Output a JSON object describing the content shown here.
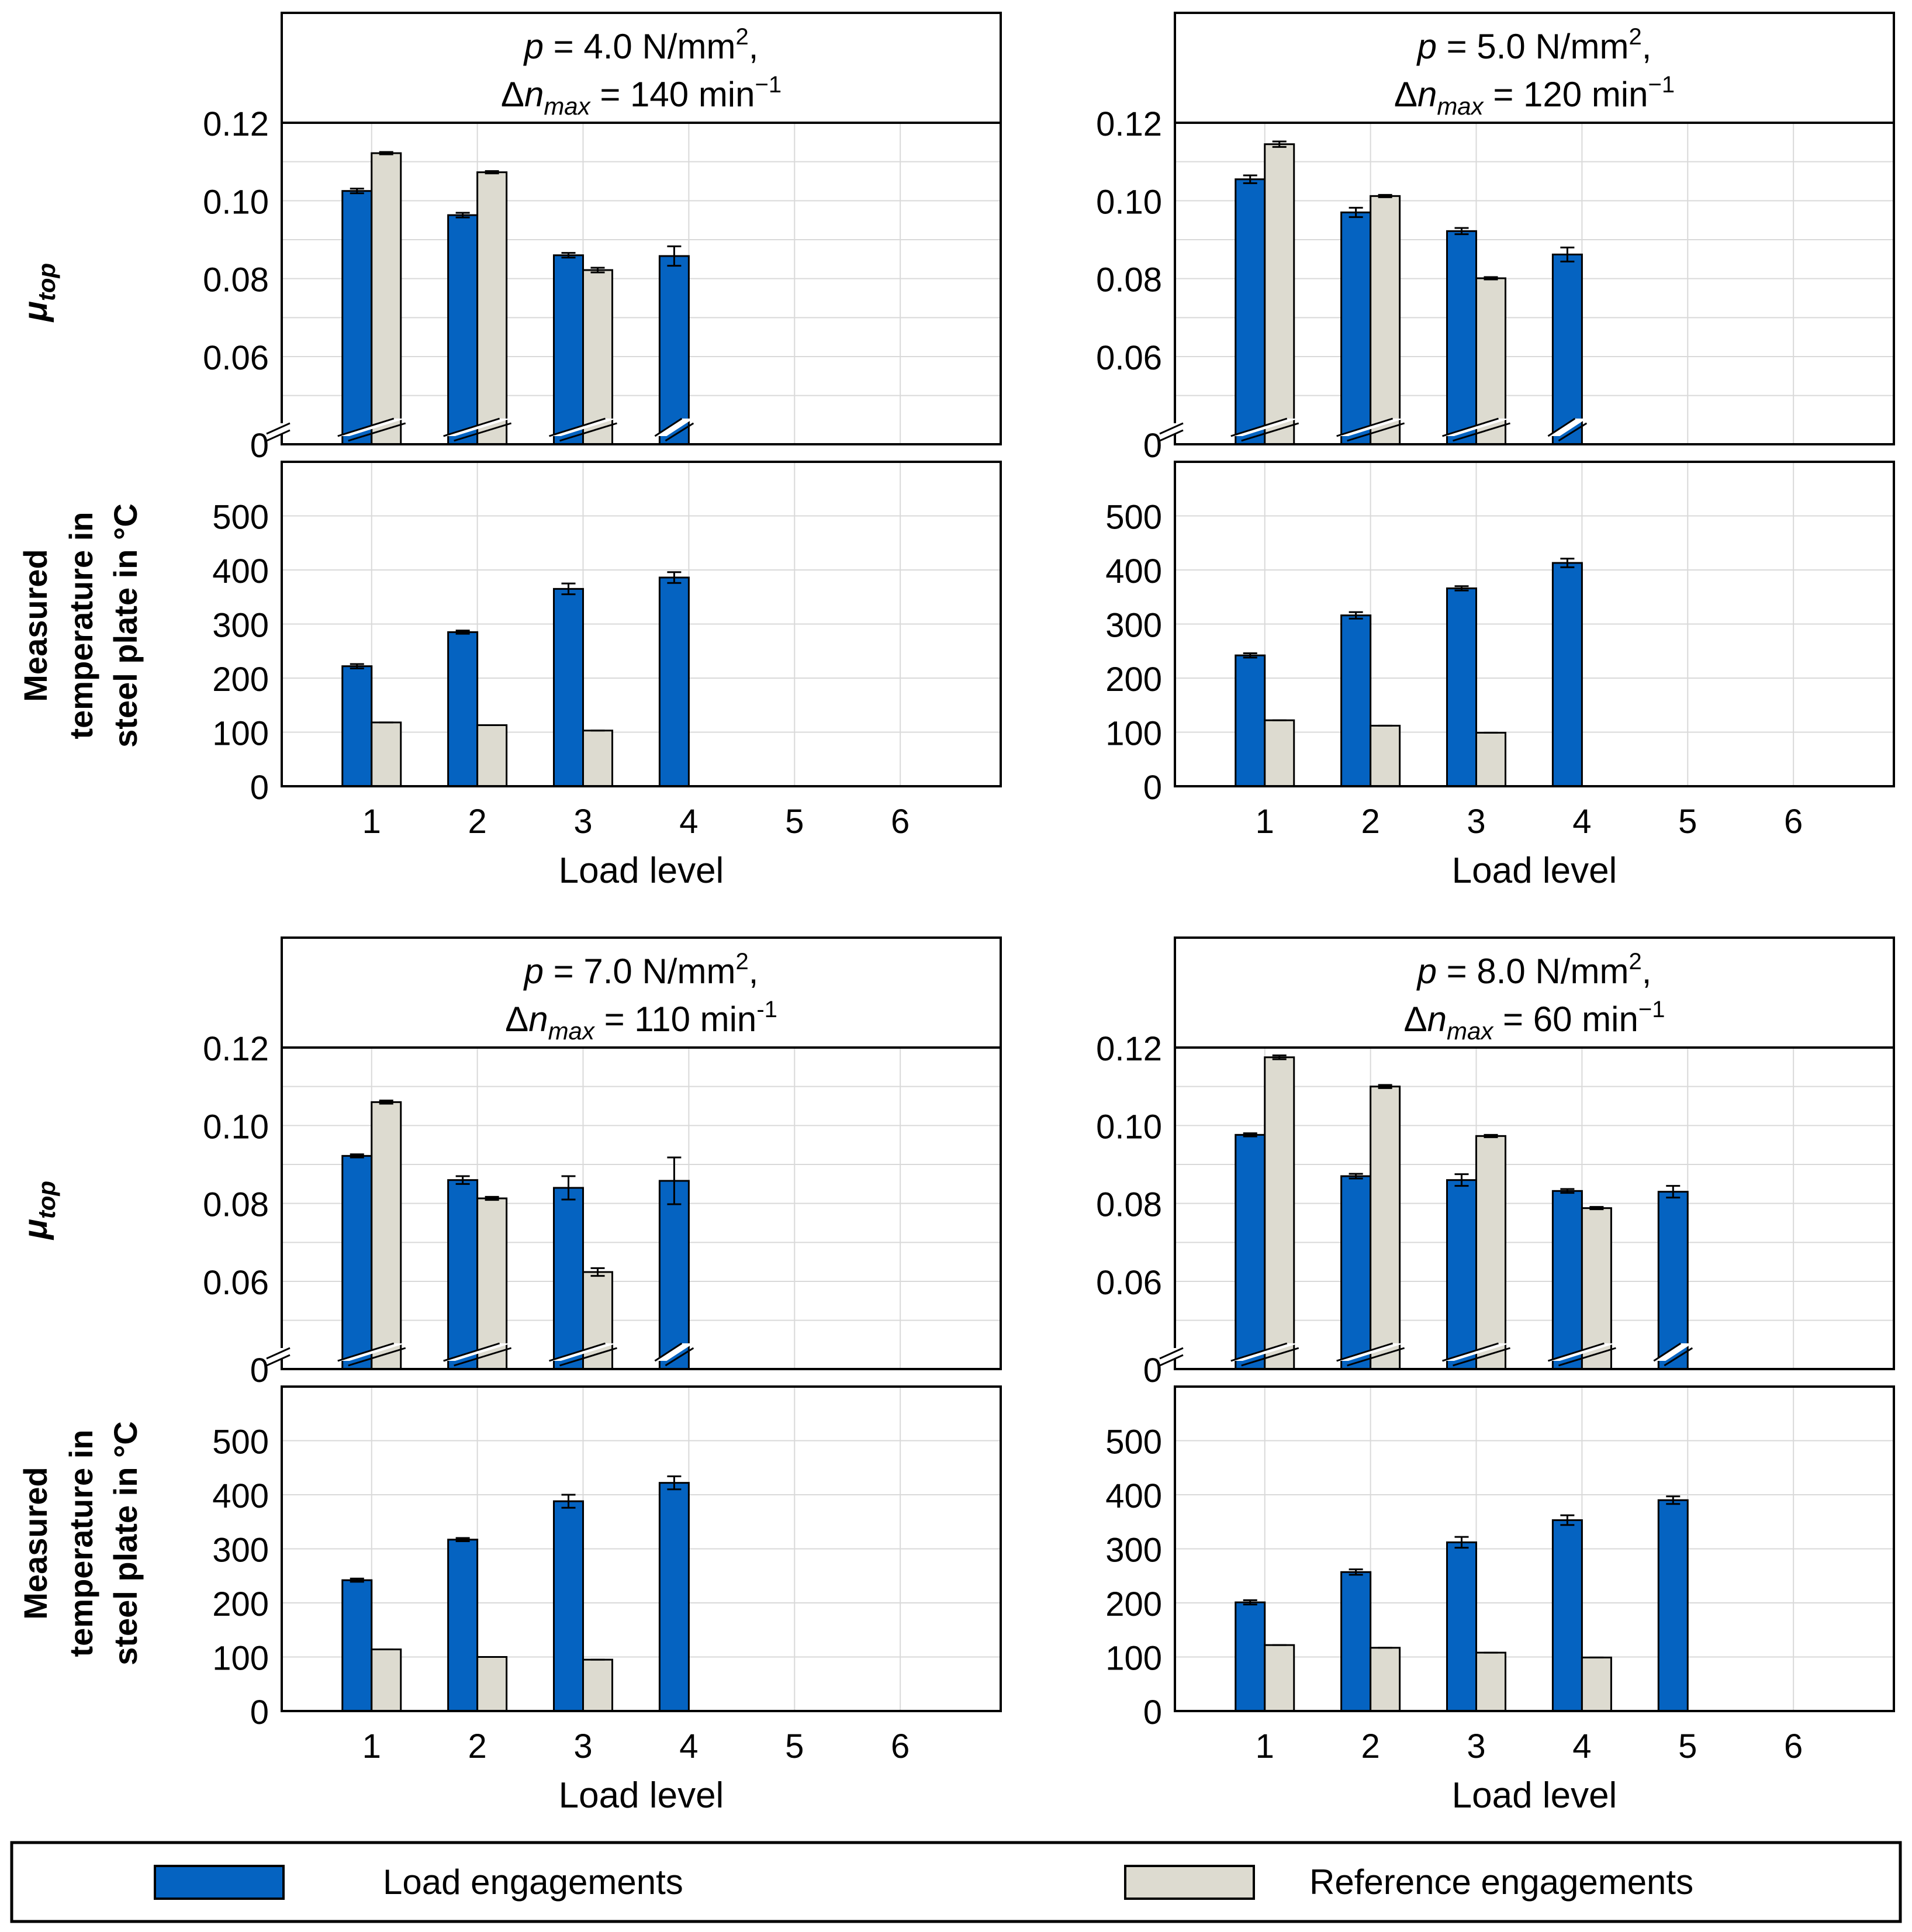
{
  "colors": {
    "load": "#0563C1",
    "reference": "#DDDBD0",
    "grid": "#D9D9D9",
    "axis": "#000000",
    "background": "#FFFFFF"
  },
  "y_labels": {
    "mu": "μtop",
    "mu_main": "μ",
    "mu_sub": "top",
    "temp_line1": "Measured",
    "temp_line2": "temperature in",
    "temp_line3": "steel plate in °C"
  },
  "xlabel": "Load level",
  "legend": {
    "load": "Load engagements",
    "reference": "Reference engagements"
  },
  "chart_data": [
    {
      "type": "bar",
      "panel": "top-left",
      "title_line1": "p = 4.0 N/mm², ",
      "title_line2": "Δn_max = 140 min⁻¹",
      "title": {
        "p_sym": "p",
        "p_rest": " = 4.0 N/mm",
        "p_sup": "2",
        "p_end": ",",
        "dn_sym": "Δn",
        "dn_sub": "max",
        "dn_rest": " = 140 min",
        "dn_sup": "−1"
      },
      "categories": [
        "1",
        "2",
        "3",
        "4",
        "5",
        "6"
      ],
      "mu": {
        "yticks": [
          "0",
          "0.06",
          "0.08",
          "0.10",
          "0.12"
        ],
        "load": [
          0.1025,
          0.0963,
          0.086,
          0.0858,
          null,
          null
        ],
        "load_err": [
          0.0006,
          0.0006,
          0.0006,
          0.0025,
          null,
          null
        ],
        "reference": [
          0.1122,
          0.1073,
          0.0822,
          null,
          null,
          null
        ],
        "reference_err": [
          0.0003,
          0.0003,
          0.0006,
          null,
          null,
          null
        ]
      },
      "temp": {
        "yticks": [
          "0",
          "100",
          "200",
          "300",
          "400",
          "500"
        ],
        "load": [
          222,
          285,
          365,
          386,
          null,
          null
        ],
        "load_err": [
          4,
          3,
          10,
          10,
          null,
          null
        ],
        "reference": [
          118,
          113,
          103,
          null,
          null,
          null
        ],
        "reference_err": [
          0,
          0,
          0,
          null,
          null,
          null
        ]
      }
    },
    {
      "type": "bar",
      "panel": "top-right",
      "title_line1": "p = 5.0 N/mm², ",
      "title_line2": "Δn_max = 120 min⁻¹",
      "title": {
        "p_sym": "p",
        "p_rest": " = 5.0 N/mm",
        "p_sup": "2",
        "p_end": ",",
        "dn_sym": "Δn",
        "dn_sub": "max",
        "dn_rest": " = 120 min",
        "dn_sup": "−1"
      },
      "categories": [
        "1",
        "2",
        "3",
        "4",
        "5",
        "6"
      ],
      "mu": {
        "yticks": [
          "0",
          "0.06",
          "0.08",
          "0.10",
          "0.12"
        ],
        "load": [
          0.1055,
          0.097,
          0.0922,
          0.0862,
          null,
          null
        ],
        "load_err": [
          0.001,
          0.0012,
          0.0008,
          0.0018,
          null,
          null
        ],
        "reference": [
          0.1145,
          0.1012,
          0.0801,
          null,
          null,
          null
        ],
        "reference_err": [
          0.0007,
          0.0003,
          0.0003,
          null,
          null,
          null
        ]
      },
      "temp": {
        "yticks": [
          "0",
          "100",
          "200",
          "300",
          "400",
          "500"
        ],
        "load": [
          242,
          316,
          366,
          413,
          null,
          null
        ],
        "load_err": [
          4,
          6,
          4,
          8,
          null,
          null
        ],
        "reference": [
          122,
          112,
          99,
          null,
          null,
          null
        ],
        "reference_err": [
          0,
          0,
          0,
          null,
          null,
          null
        ]
      }
    },
    {
      "type": "bar",
      "panel": "bottom-left",
      "title_line1": "p = 7.0 N/mm², ",
      "title_line2": "Δn_max = 110 min-1",
      "title": {
        "p_sym": "p",
        "p_rest": " = 7.0 N/mm",
        "p_sup": "2",
        "p_end": ",",
        "dn_sym": "Δn",
        "dn_sub": "max",
        "dn_rest": " = 110 min",
        "dn_sup": "-1"
      },
      "categories": [
        "1",
        "2",
        "3",
        "4",
        "5",
        "6"
      ],
      "mu": {
        "yticks": [
          "0",
          "0.06",
          "0.08",
          "0.10",
          "0.12"
        ],
        "load": [
          0.0922,
          0.086,
          0.084,
          0.0858,
          null,
          null
        ],
        "load_err": [
          0.0004,
          0.001,
          0.003,
          0.006,
          null,
          null
        ],
        "reference": [
          0.106,
          0.0813,
          0.0624,
          null,
          null,
          null
        ],
        "reference_err": [
          0.0004,
          0.0004,
          0.001,
          null,
          null,
          null
        ]
      },
      "temp": {
        "yticks": [
          "0",
          "100",
          "200",
          "300",
          "400",
          "500"
        ],
        "load": [
          242,
          317,
          388,
          422,
          null,
          null
        ],
        "load_err": [
          3,
          3,
          12,
          12,
          null,
          null
        ],
        "reference": [
          114,
          100,
          95,
          null,
          null,
          null
        ],
        "reference_err": [
          0,
          0,
          0,
          null,
          null,
          null
        ]
      }
    },
    {
      "type": "bar",
      "panel": "bottom-right",
      "title_line1": "p = 8.0 N/mm², ",
      "title_line2": "Δn_max = 60 min⁻¹",
      "title": {
        "p_sym": "p",
        "p_rest": " = 8.0 N/mm",
        "p_sup": "2",
        "p_end": ",",
        "dn_sym": "Δn",
        "dn_sub": "max",
        "dn_rest": " = 60 min",
        "dn_sup": "−1"
      },
      "categories": [
        "1",
        "2",
        "3",
        "4",
        "5",
        "6"
      ],
      "mu": {
        "yticks": [
          "0",
          "0.06",
          "0.08",
          "0.10",
          "0.12"
        ],
        "load": [
          0.0976,
          0.087,
          0.086,
          0.0832,
          0.083,
          null
        ],
        "load_err": [
          0.0004,
          0.0006,
          0.0015,
          0.0005,
          0.0015,
          null
        ],
        "reference": [
          0.1175,
          0.11,
          0.0973,
          0.0788,
          null,
          null
        ],
        "reference_err": [
          0.0005,
          0.0004,
          0.0003,
          0.0003,
          null,
          null
        ]
      },
      "temp": {
        "yticks": [
          "0",
          "100",
          "200",
          "300",
          "400",
          "500"
        ],
        "load": [
          201,
          257,
          312,
          353,
          390,
          null
        ],
        "load_err": [
          4,
          5,
          10,
          9,
          7,
          null
        ],
        "reference": [
          122,
          117,
          108,
          99,
          null,
          null
        ],
        "reference_err": [
          0,
          0,
          0,
          0,
          null,
          null
        ]
      }
    }
  ]
}
